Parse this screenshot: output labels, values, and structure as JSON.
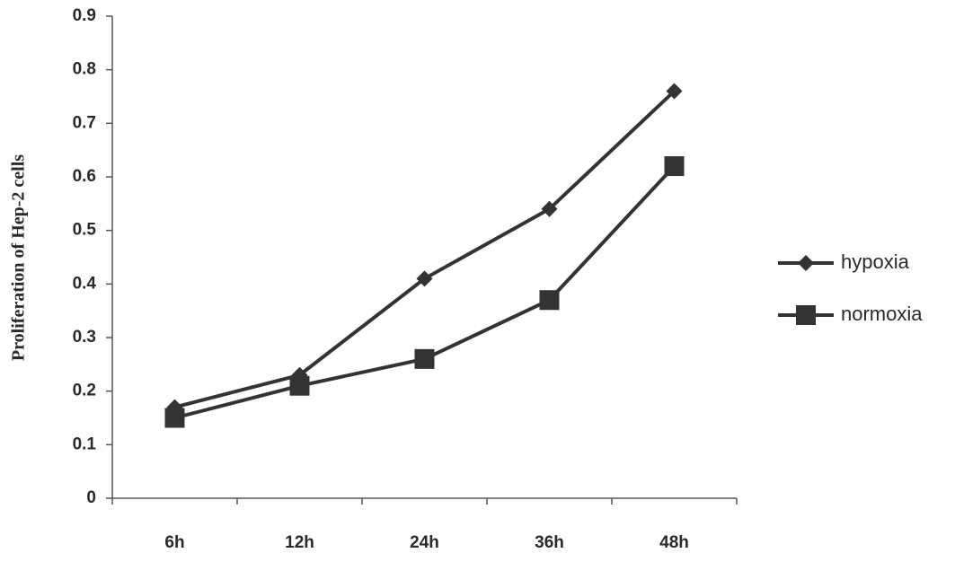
{
  "chart_data": {
    "type": "line",
    "y_label": "Proliferation of Hep-2 cells",
    "categories": [
      "6h",
      "12h",
      "24h",
      "36h",
      "48h"
    ],
    "series": [
      {
        "name": "hypoxia",
        "color": "#333333",
        "marker": "diamond",
        "values": [
          0.17,
          0.23,
          0.41,
          0.54,
          0.76
        ]
      },
      {
        "name": "normoxia",
        "color": "#333333",
        "marker": "square",
        "values": [
          0.15,
          0.21,
          0.26,
          0.37,
          0.62
        ]
      }
    ],
    "ylim": [
      0,
      0.9
    ],
    "yticks": [
      0,
      0.1,
      0.2,
      0.3,
      0.4,
      0.5,
      0.6,
      0.7,
      0.8,
      0.9
    ],
    "grid": false,
    "legend": "right"
  }
}
